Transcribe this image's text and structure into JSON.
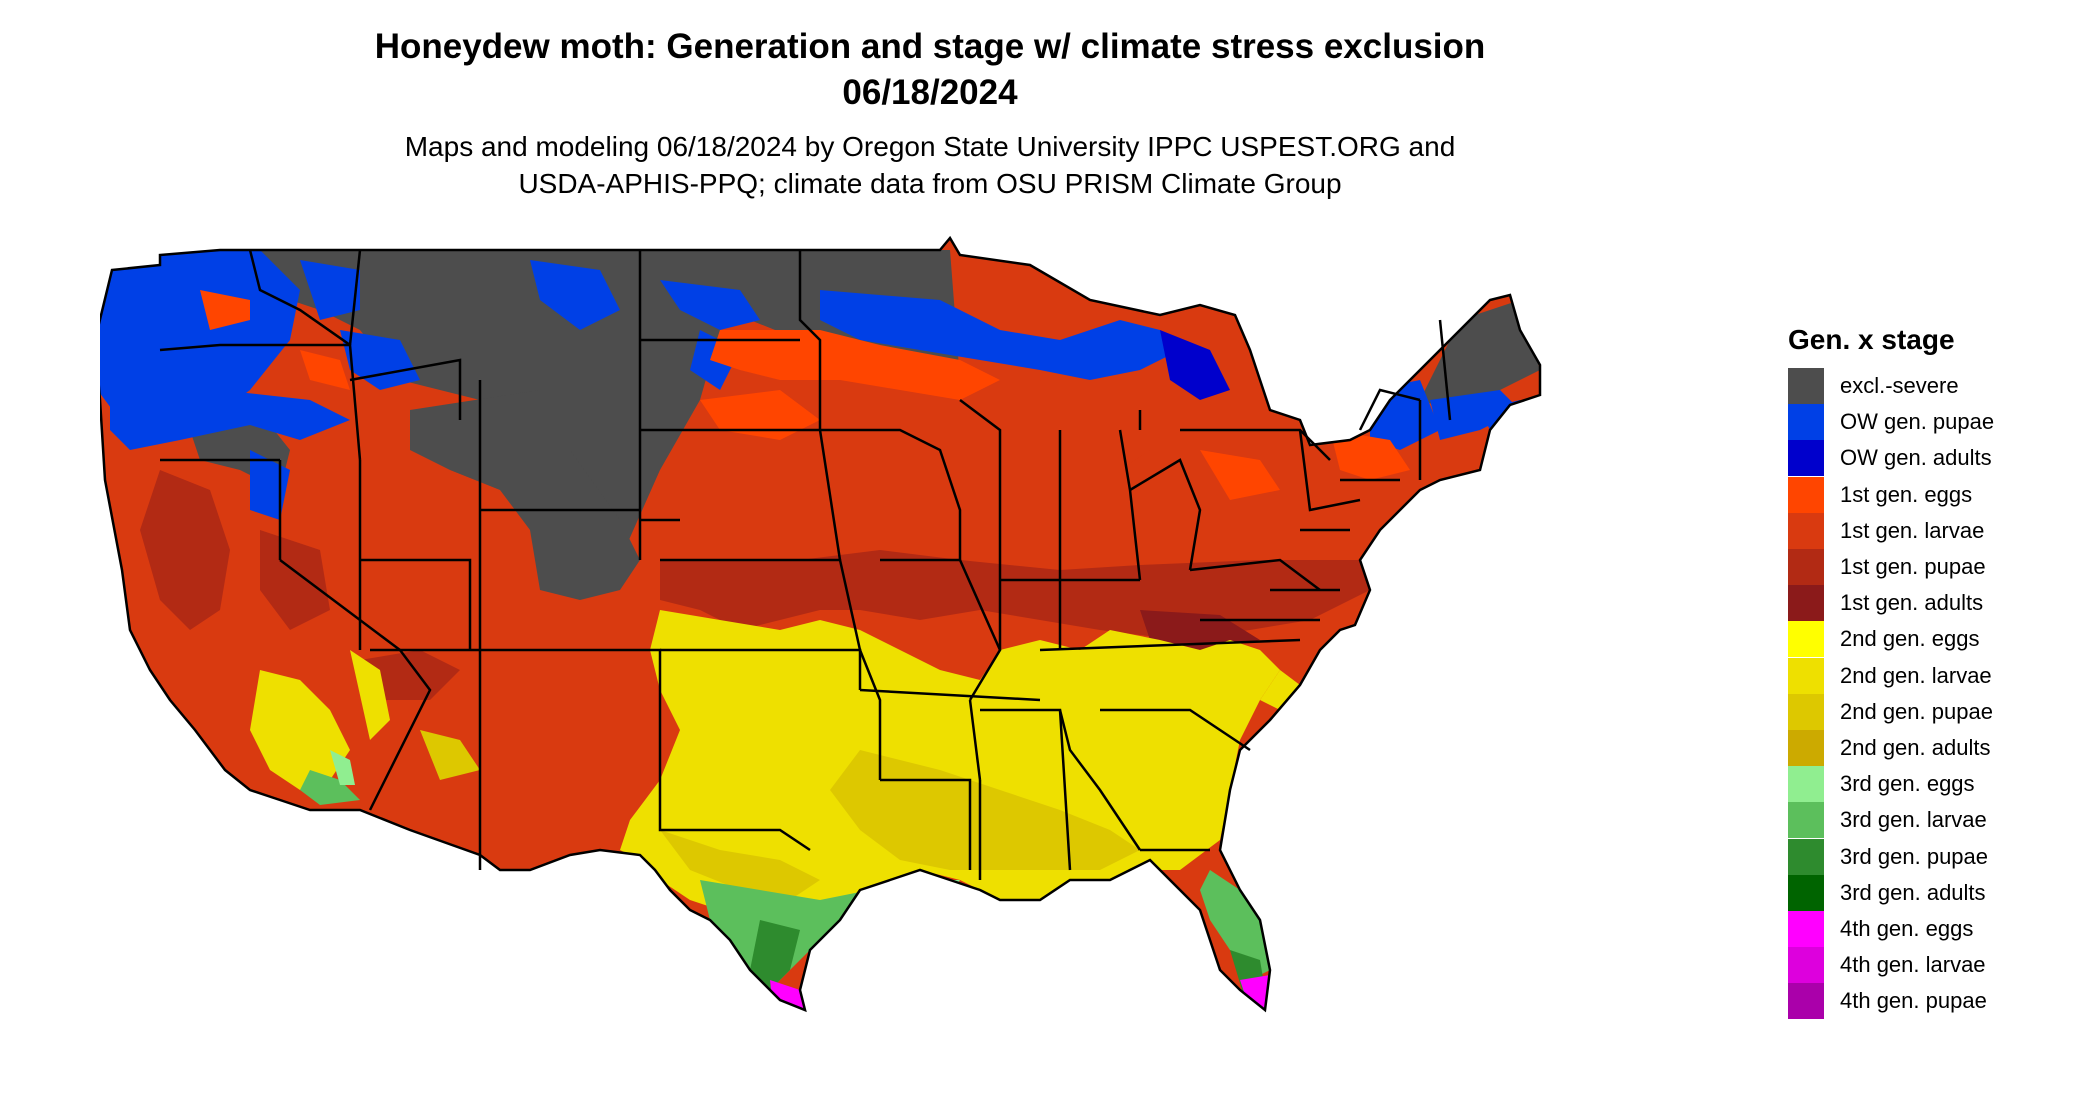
{
  "title": {
    "line1": "Honeydew moth: Generation and stage w/ climate stress exclusion",
    "line2": "06/18/2024"
  },
  "subtitle": {
    "line1": "Maps and modeling 06/18/2024 by Oregon State University IPPC USPEST.ORG and",
    "line2": "USDA-APHIS-PPQ; climate data from OSU PRISM Climate Group"
  },
  "legend": {
    "title": "Gen. x stage",
    "items": [
      {
        "label": "excl.-severe",
        "color": "#4d4d4d"
      },
      {
        "label": "OW gen. pupae",
        "color": "#0040e6"
      },
      {
        "label": "OW gen. adults",
        "color": "#0000cc"
      },
      {
        "label": "1st gen. eggs",
        "color": "#ff4500"
      },
      {
        "label": "1st gen. larvae",
        "color": "#d93a10"
      },
      {
        "label": "1st gen. pupae",
        "color": "#b22a14"
      },
      {
        "label": "1st gen. adults",
        "color": "#8b1a1a"
      },
      {
        "label": "2nd gen. eggs",
        "color": "#ffff00"
      },
      {
        "label": "2nd gen. larvae",
        "color": "#eee000"
      },
      {
        "label": "2nd gen. pupae",
        "color": "#ddc800"
      },
      {
        "label": "2nd gen. adults",
        "color": "#ccaa00"
      },
      {
        "label": "3rd gen. eggs",
        "color": "#90ee90"
      },
      {
        "label": "3rd gen. larvae",
        "color": "#5cbf5c"
      },
      {
        "label": "3rd gen. pupae",
        "color": "#2e8b2e"
      },
      {
        "label": "3rd gen. adults",
        "color": "#006400"
      },
      {
        "label": "4th gen. eggs",
        "color": "#ff00ff"
      },
      {
        "label": "4th gen. larvae",
        "color": "#dd00dd"
      },
      {
        "label": "4th gen. pupae",
        "color": "#aa00aa"
      }
    ]
  }
}
